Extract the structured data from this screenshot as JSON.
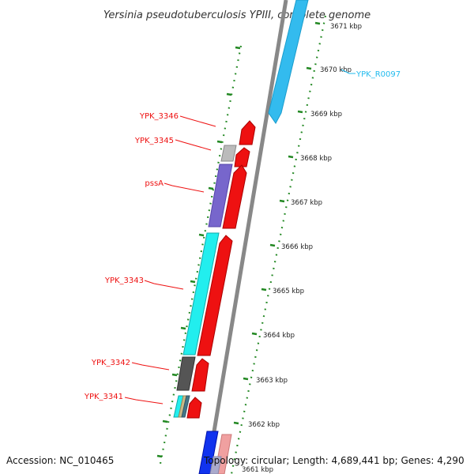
{
  "title": "Yersinia pseudotuberculosis YPIII, complete genome",
  "footer": {
    "accession": "Accession: NC_010465",
    "info": "Topology: circular; Length: 4,689,441 bp; Genes: 4,290"
  },
  "scale_ticks": [
    "3671 kbp",
    "3670 kbp",
    "3669 kbp",
    "3668 kbp",
    "3667 kbp",
    "3666 kbp",
    "3665 kbp",
    "3664 kbp",
    "3663 kbp",
    "3662 kbp",
    "3661 kbp"
  ],
  "gene_labels": [
    "YPK_3346",
    "YPK_3345",
    "pssA",
    "YPK_3343",
    "YPK_3342",
    "YPK_3341",
    "YPK_R0097"
  ],
  "colors": {
    "cds_forward": "#ee1111",
    "cds_reverse_cyan": "#22eeee",
    "cds_purple": "#7766cc",
    "cds_gray": "#aaaaaa",
    "cds_darkgray": "#555555",
    "rna": "#33bbee",
    "backbone": "#888888",
    "ticks": "#228822",
    "label_line": "#ee1111"
  }
}
